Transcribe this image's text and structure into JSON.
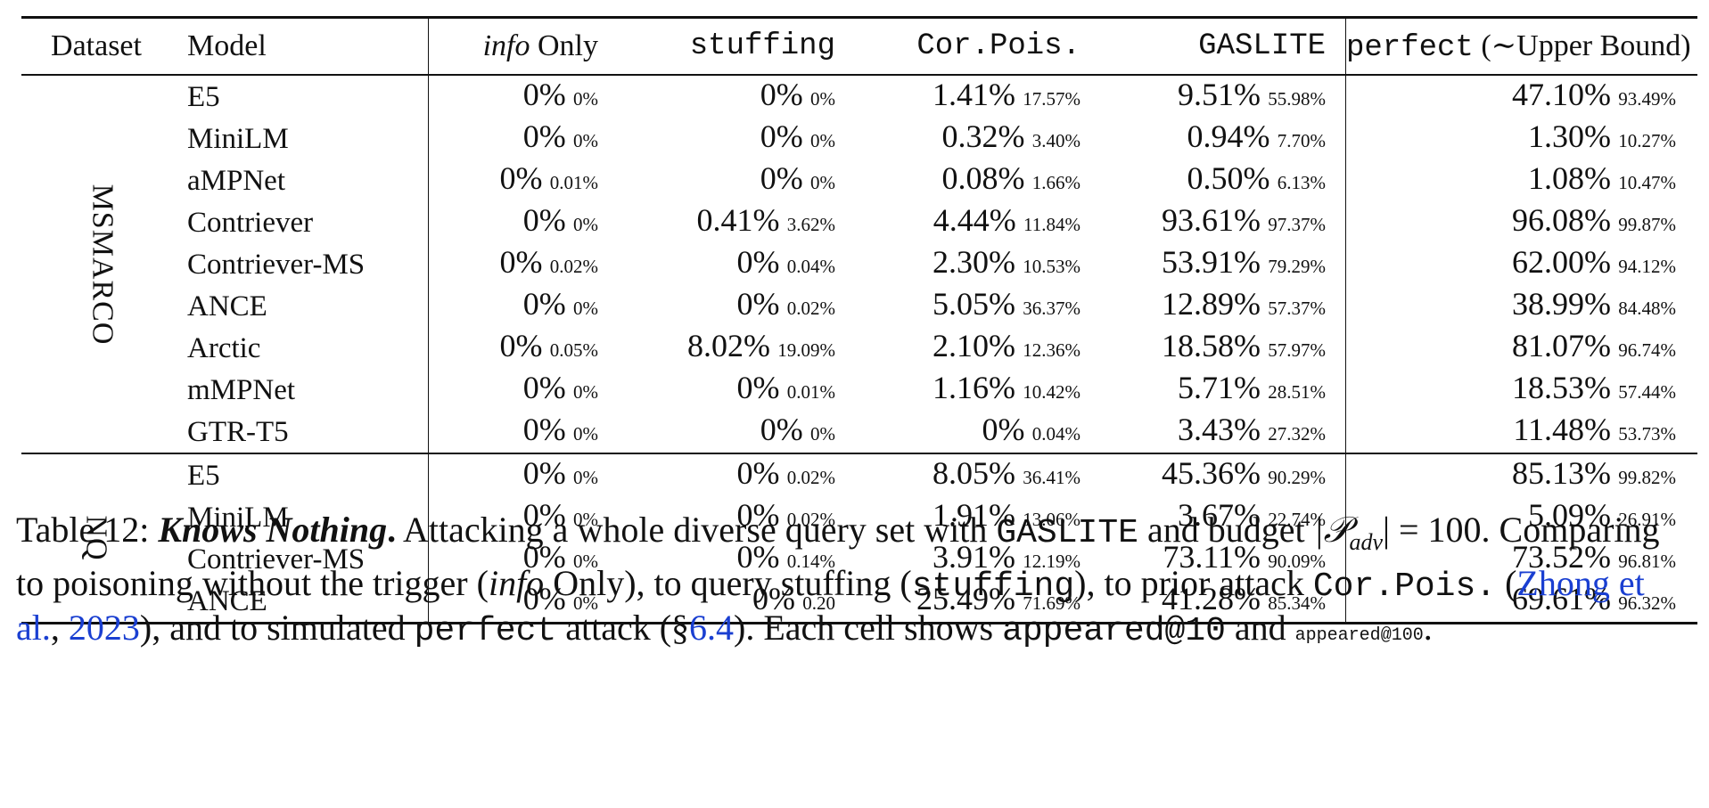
{
  "table": {
    "headers": {
      "dataset": "Dataset",
      "model": "Model",
      "info_italic": "info",
      "info_rest": " Only",
      "stuffing": "stuffing",
      "cor_pois": "Cor.Pois.",
      "gaslite": "GASLITE",
      "perfect": "perfect",
      "perfect_note": " (∼Upper Bound)"
    },
    "groups": [
      {
        "dataset": "MSMARCO",
        "rows": [
          {
            "model": "E5",
            "info": "0%",
            "info_s": "0%",
            "stuff": "0%",
            "stuff_s": "0%",
            "cor": "1.41%",
            "cor_s": "17.57%",
            "gas": "9.51%",
            "gas_s": "55.98%",
            "perf": "47.10%",
            "perf_s": "93.49%"
          },
          {
            "model": "MiniLM",
            "info": "0%",
            "info_s": "0%",
            "stuff": "0%",
            "stuff_s": "0%",
            "cor": "0.32%",
            "cor_s": "3.40%",
            "gas": "0.94%",
            "gas_s": "7.70%",
            "perf": "1.30%",
            "perf_s": "10.27%"
          },
          {
            "model": "aMPNet",
            "info": "0%",
            "info_s": "0.01%",
            "stuff": "0%",
            "stuff_s": "0%",
            "cor": "0.08%",
            "cor_s": "1.66%",
            "gas": "0.50%",
            "gas_s": "6.13%",
            "perf": "1.08%",
            "perf_s": "10.47%"
          },
          {
            "model": "Contriever",
            "info": "0%",
            "info_s": "0%",
            "stuff": "0.41%",
            "stuff_s": "3.62%",
            "cor": "4.44%",
            "cor_s": "11.84%",
            "gas": "93.61%",
            "gas_s": "97.37%",
            "perf": "96.08%",
            "perf_s": "99.87%"
          },
          {
            "model": "Contriever-MS",
            "info": "0%",
            "info_s": "0.02%",
            "stuff": "0%",
            "stuff_s": "0.04%",
            "cor": "2.30%",
            "cor_s": "10.53%",
            "gas": "53.91%",
            "gas_s": "79.29%",
            "perf": "62.00%",
            "perf_s": "94.12%"
          },
          {
            "model": "ANCE",
            "info": "0%",
            "info_s": "0%",
            "stuff": "0%",
            "stuff_s": "0.02%",
            "cor": "5.05%",
            "cor_s": "36.37%",
            "gas": "12.89%",
            "gas_s": "57.37%",
            "perf": "38.99%",
            "perf_s": "84.48%"
          },
          {
            "model": "Arctic",
            "info": "0%",
            "info_s": "0.05%",
            "stuff": "8.02%",
            "stuff_s": "19.09%",
            "cor": "2.10%",
            "cor_s": "12.36%",
            "gas": "18.58%",
            "gas_s": "57.97%",
            "perf": "81.07%",
            "perf_s": "96.74%"
          },
          {
            "model": "mMPNet",
            "info": "0%",
            "info_s": "0%",
            "stuff": "0%",
            "stuff_s": "0.01%",
            "cor": "1.16%",
            "cor_s": "10.42%",
            "gas": "5.71%",
            "gas_s": "28.51%",
            "perf": "18.53%",
            "perf_s": "57.44%"
          },
          {
            "model": "GTR-T5",
            "info": "0%",
            "info_s": "0%",
            "stuff": "0%",
            "stuff_s": "0%",
            "cor": "0%",
            "cor_s": "0.04%",
            "gas": "3.43%",
            "gas_s": "27.32%",
            "perf": "11.48%",
            "perf_s": "53.73%"
          }
        ]
      },
      {
        "dataset": "NQ",
        "rows": [
          {
            "model": "E5",
            "info": "0%",
            "info_s": "0%",
            "stuff": "0%",
            "stuff_s": "0.02%",
            "cor": "8.05%",
            "cor_s": "36.41%",
            "gas": "45.36%",
            "gas_s": "90.29%",
            "perf": "85.13%",
            "perf_s": "99.82%"
          },
          {
            "model": "MiniLM",
            "info": "0%",
            "info_s": "0%",
            "stuff": "0%",
            "stuff_s": "0.02%",
            "cor": "1.91%",
            "cor_s": "13.06%",
            "gas": "3.67%",
            "gas_s": "22.74%",
            "perf": "5.09%",
            "perf_s": "26.91%"
          },
          {
            "model": "Contriever-MS",
            "info": "0%",
            "info_s": "0%",
            "stuff": "0%",
            "stuff_s": "0.14%",
            "cor": "3.91%",
            "cor_s": "12.19%",
            "gas": "73.11%",
            "gas_s": "90.09%",
            "perf": "73.52%",
            "perf_s": "96.81%"
          },
          {
            "model": "ANCE",
            "info": "0%",
            "info_s": "0%",
            "stuff": "0%",
            "stuff_s": "0.20",
            "cor": "25.49%",
            "cor_s": "71.69%",
            "gas": "41.28%",
            "gas_s": "85.34%",
            "perf": "69.61%",
            "perf_s": "96.32%"
          }
        ]
      }
    ]
  },
  "caption": {
    "label": "Table 12: ",
    "title": "Knows Nothing",
    "title_end": ".",
    "t1": " Attacking a whole diverse query set with ",
    "gaslite": "GASLITE",
    "t2": " and budget ",
    "budget_math": "|𝒫",
    "budget_sub": "adv",
    "budget_end": "| = 100. Comparing to poisoning without the trigger (",
    "info": "info",
    "t3": " Only), to query stuffing (",
    "stuffing": "stuffing",
    "t4": "), to prior attack ",
    "cor_pois": "Cor.Pois.",
    "t5": " (",
    "cite_author": "Zhong et al.",
    "cite_sep": ", ",
    "cite_year": "2023",
    "t6": "), and to simulated ",
    "perfect": "perfect",
    "t7": " attack (§",
    "section": "6.4",
    "t8": "). Each cell shows ",
    "appeared10": "appeared@10",
    "t9": " and ",
    "appeared100": "appeared@100",
    "t10": "."
  }
}
